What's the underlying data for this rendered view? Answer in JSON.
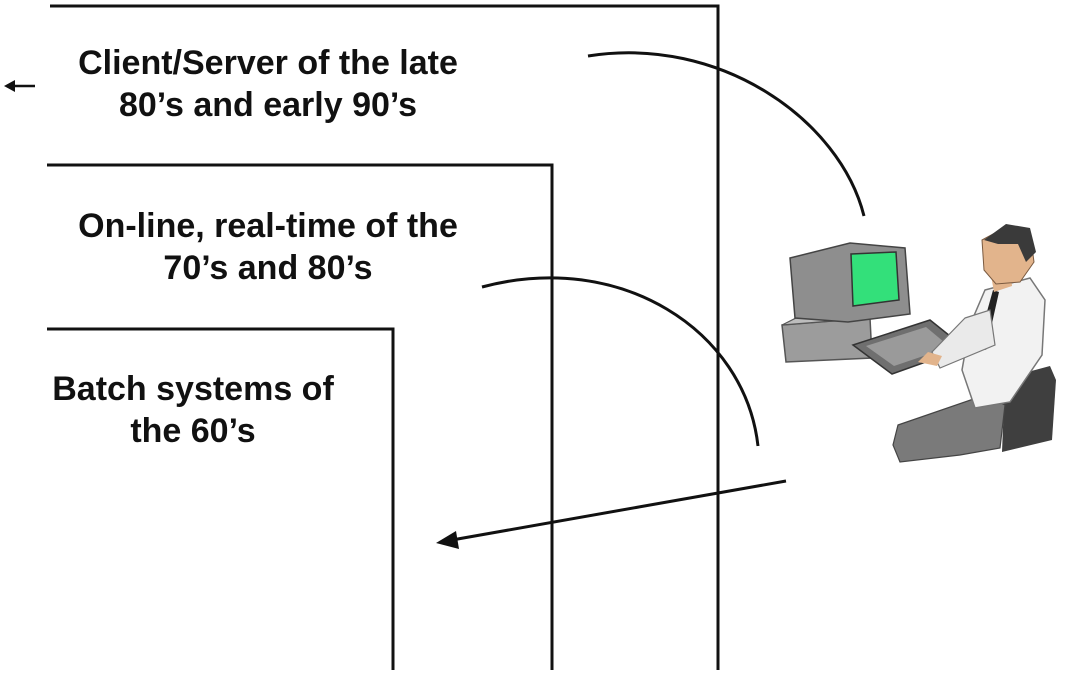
{
  "eras": [
    {
      "line1": "Client/Server of the late",
      "line2": "80’s and early 90’s"
    },
    {
      "line1": "On-line, real-time of the",
      "line2": "70’s and 80’s"
    },
    {
      "line1": "Batch systems of",
      "line2": "the 60’s"
    }
  ],
  "colors": {
    "line": "#111111",
    "screen": "#33e07a",
    "monitor": "#9a9a9a",
    "shirt": "#f2f2f2",
    "pants": "#7a7a7a",
    "skin": "#e2b48c",
    "hair": "#3a3a3a"
  },
  "icons": [
    "left-arrow-icon",
    "computer-user-illustration"
  ]
}
